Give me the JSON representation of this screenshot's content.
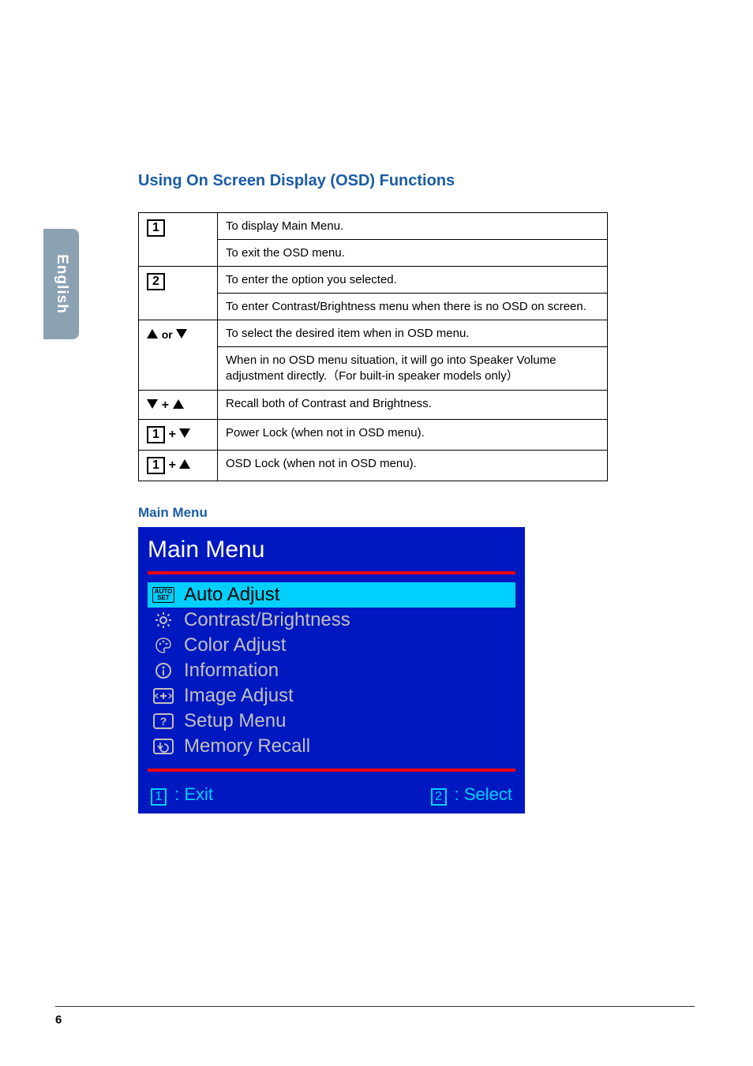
{
  "language_tab": "English",
  "section_title": "Using On Screen Display (OSD) Functions",
  "func_table": {
    "rows": [
      {
        "key_html": "numbox-1",
        "desc1": "To display Main Menu.",
        "desc2": "To exit the OSD menu."
      },
      {
        "key_html": "numbox-2",
        "desc1": "To enter the option you selected.",
        "desc2": "To enter Contrast/Brightness menu when there is no OSD on screen."
      },
      {
        "key_html": "updown",
        "desc1": "To select the desired item when in OSD menu.",
        "desc2": "When in no OSD menu situation, it will go into Speaker Volume adjustment directly.（For built-in speaker models only）"
      },
      {
        "key_html": "down-plus-up",
        "desc1": "Recall both of Contrast and Brightness."
      },
      {
        "key_html": "1-plus-down",
        "desc1": "Power Lock (when not in OSD menu)."
      },
      {
        "key_html": "1-plus-up",
        "desc1": "OSD Lock (when not in OSD menu)."
      }
    ]
  },
  "main_menu_label": "Main Menu",
  "osd": {
    "title": "Main Menu",
    "items": [
      {
        "icon": "auto-set",
        "label": "Auto Adjust",
        "active": true
      },
      {
        "icon": "sun",
        "label": "Contrast/Brightness",
        "active": false
      },
      {
        "icon": "palette",
        "label": "Color Adjust",
        "active": false
      },
      {
        "icon": "info",
        "label": "Information",
        "active": false
      },
      {
        "icon": "image",
        "label": "Image Adjust",
        "active": false
      },
      {
        "icon": "question",
        "label": "Setup Menu",
        "active": false
      },
      {
        "icon": "recall",
        "label": "Memory Recall",
        "active": false
      }
    ],
    "footer_left_num": "1",
    "footer_left_text": " : Exit",
    "footer_right_num": "2",
    "footer_right_text": " : Select"
  },
  "page_footer": "6",
  "colors": {
    "heading": "#1a5ca6",
    "osd_bg": "#0018c0",
    "osd_active": "#00d0ff",
    "osd_text": "#c0c0c0",
    "osd_title": "#ffffff",
    "osd_hr": "#ff0000"
  }
}
